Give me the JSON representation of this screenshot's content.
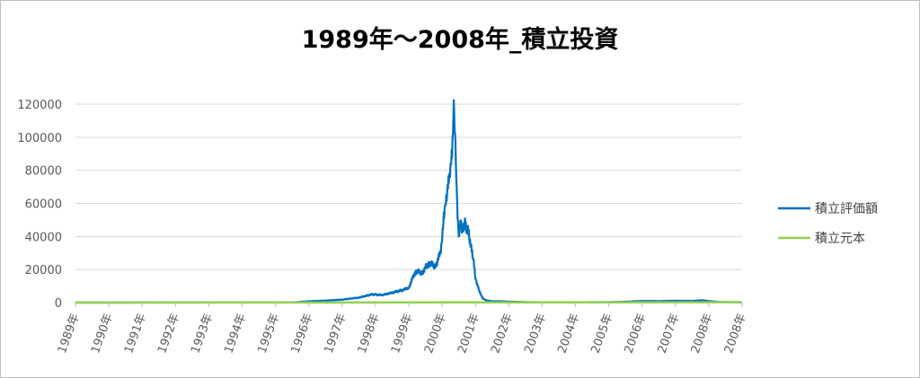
{
  "chart_data": {
    "type": "line",
    "title": "1989年～2008年_積立投資",
    "ylim": [
      0,
      120000
    ],
    "y_ticks": [
      "0",
      "20000",
      "40000",
      "60000",
      "80000",
      "100000",
      "120000"
    ],
    "x_ticks": [
      "1989年",
      "1990年",
      "1991年",
      "1992年",
      "1993年",
      "1994年",
      "1995年",
      "1996年",
      "1997年",
      "1998年",
      "1999年",
      "2000年",
      "2001年",
      "2002年",
      "2003年",
      "2004年",
      "2005年",
      "2006年",
      "2007年",
      "2008年",
      "2008年"
    ],
    "xlim": [
      1989,
      2009
    ],
    "legend_position": "right",
    "grid": true,
    "series": [
      {
        "name": "積立評価額",
        "color": "#0070c0",
        "x": [
          1989.0,
          1995.5,
          1996.0,
          1996.5,
          1997.0,
          1997.5,
          1997.9,
          1998.2,
          1998.5,
          1998.8,
          1999.0,
          1999.2,
          1999.4,
          1999.6,
          1999.8,
          1999.95,
          2000.1,
          2000.2,
          2000.3,
          2000.35,
          2000.4,
          2000.45,
          2000.5,
          2000.55,
          2000.6,
          2000.7,
          2000.8,
          2000.9,
          2000.95,
          2001.0,
          2001.1,
          2001.2,
          2001.3,
          2001.5,
          2001.8,
          2002.0,
          2002.5,
          2003.0,
          2004.0,
          2005.0,
          2005.5,
          2006.0,
          2006.5,
          2007.0,
          2007.5,
          2007.8,
          2008.0,
          2008.3,
          2008.6,
          2009.0
        ],
        "values": [
          0,
          100,
          800,
          1200,
          1800,
          3000,
          5000,
          4500,
          6000,
          7500,
          9000,
          19000,
          18000,
          24000,
          22000,
          30000,
          60000,
          75000,
          90000,
          122000,
          95000,
          60000,
          40000,
          52000,
          45000,
          48000,
          42000,
          30000,
          25000,
          15000,
          8000,
          3000,
          1500,
          800,
          800,
          600,
          300,
          200,
          200,
          300,
          500,
          1000,
          900,
          1100,
          1000,
          1400,
          900,
          400,
          300,
          200
        ]
      },
      {
        "name": "積立元本",
        "color": "#92d050",
        "x": [
          1989.0,
          2009.0
        ],
        "values": [
          0,
          240
        ]
      }
    ]
  }
}
